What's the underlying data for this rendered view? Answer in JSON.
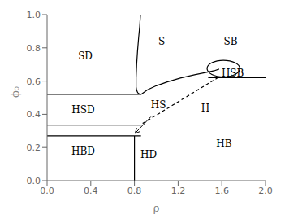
{
  "chart_data": {
    "type": "line",
    "xlabel": "ρ",
    "ylabel": "ϕ₀",
    "color": "#000000",
    "grid": false,
    "xlim": [
      0.0,
      2.0
    ],
    "ylim": [
      0.0,
      1.0
    ],
    "xticks": [
      {
        "value": 0.0,
        "label": "0.0"
      },
      0.4,
      0.8,
      1.2,
      1.6,
      {
        "value": 2.0,
        "label": "2.0"
      }
    ],
    "yticks": [
      {
        "value": 0.0,
        "label": "0.0"
      },
      0.2,
      0.4,
      0.6,
      0.8,
      {
        "value": 1.0,
        "label": "1.0"
      }
    ],
    "series": [
      {
        "x": [
          0.0,
          0.86
        ],
        "values": [
          0.52,
          0.52
        ]
      },
      {
        "x": [
          0.0,
          0.86
        ],
        "values": [
          0.335,
          0.335
        ]
      },
      {
        "x": [
          0.0,
          0.86
        ],
        "values": [
          0.27,
          0.27
        ]
      },
      {
        "x": [
          0.8,
          0.8
        ],
        "values": [
          0.0,
          0.27
        ]
      },
      {
        "x": [
          0.855,
          0.848,
          0.838,
          0.828,
          0.82,
          0.815,
          0.815,
          0.82,
          0.83,
          0.845,
          0.86
        ],
        "values": [
          1.0,
          0.93,
          0.86,
          0.78,
          0.7,
          0.62,
          0.565,
          0.545,
          0.53,
          0.522,
          0.52
        ]
      },
      {
        "x": [
          0.86,
          0.92,
          1.0,
          1.1,
          1.22,
          1.35,
          1.46,
          1.53,
          1.575
        ],
        "values": [
          0.52,
          0.548,
          0.572,
          0.595,
          0.618,
          0.638,
          0.653,
          0.662,
          0.672
        ]
      },
      {
        "type": "ellipse",
        "center_x": 1.615,
        "center_y": 0.675,
        "width": 0.3,
        "height": 0.1
      },
      {
        "x": [
          1.475,
          2.0
        ],
        "values": [
          0.62,
          0.62
        ]
      },
      {
        "x": [
          0.875,
          1.575
        ],
        "values": [
          0.345,
          0.625
        ],
        "line_style": "dashed"
      }
    ],
    "arrows": [
      {
        "from": [
          0.95,
          0.385
        ],
        "to": [
          0.805,
          0.285
        ]
      }
    ],
    "annotations": [
      {
        "text": "SD",
        "x": 0.35,
        "y": 0.75
      },
      {
        "text": "S",
        "x": 1.05,
        "y": 0.84
      },
      {
        "text": "SB",
        "x": 1.68,
        "y": 0.84
      },
      {
        "text": "HSB",
        "x": 1.7,
        "y": 0.645
      },
      {
        "text": "HSD",
        "x": 0.33,
        "y": 0.425
      },
      {
        "text": "HS",
        "x": 1.02,
        "y": 0.455
      },
      {
        "text": "H",
        "x": 1.45,
        "y": 0.435
      },
      {
        "text": "HBD",
        "x": 0.33,
        "y": 0.175
      },
      {
        "text": "HD",
        "x": 0.93,
        "y": 0.155
      },
      {
        "text": "HB",
        "x": 1.62,
        "y": 0.22
      }
    ]
  }
}
